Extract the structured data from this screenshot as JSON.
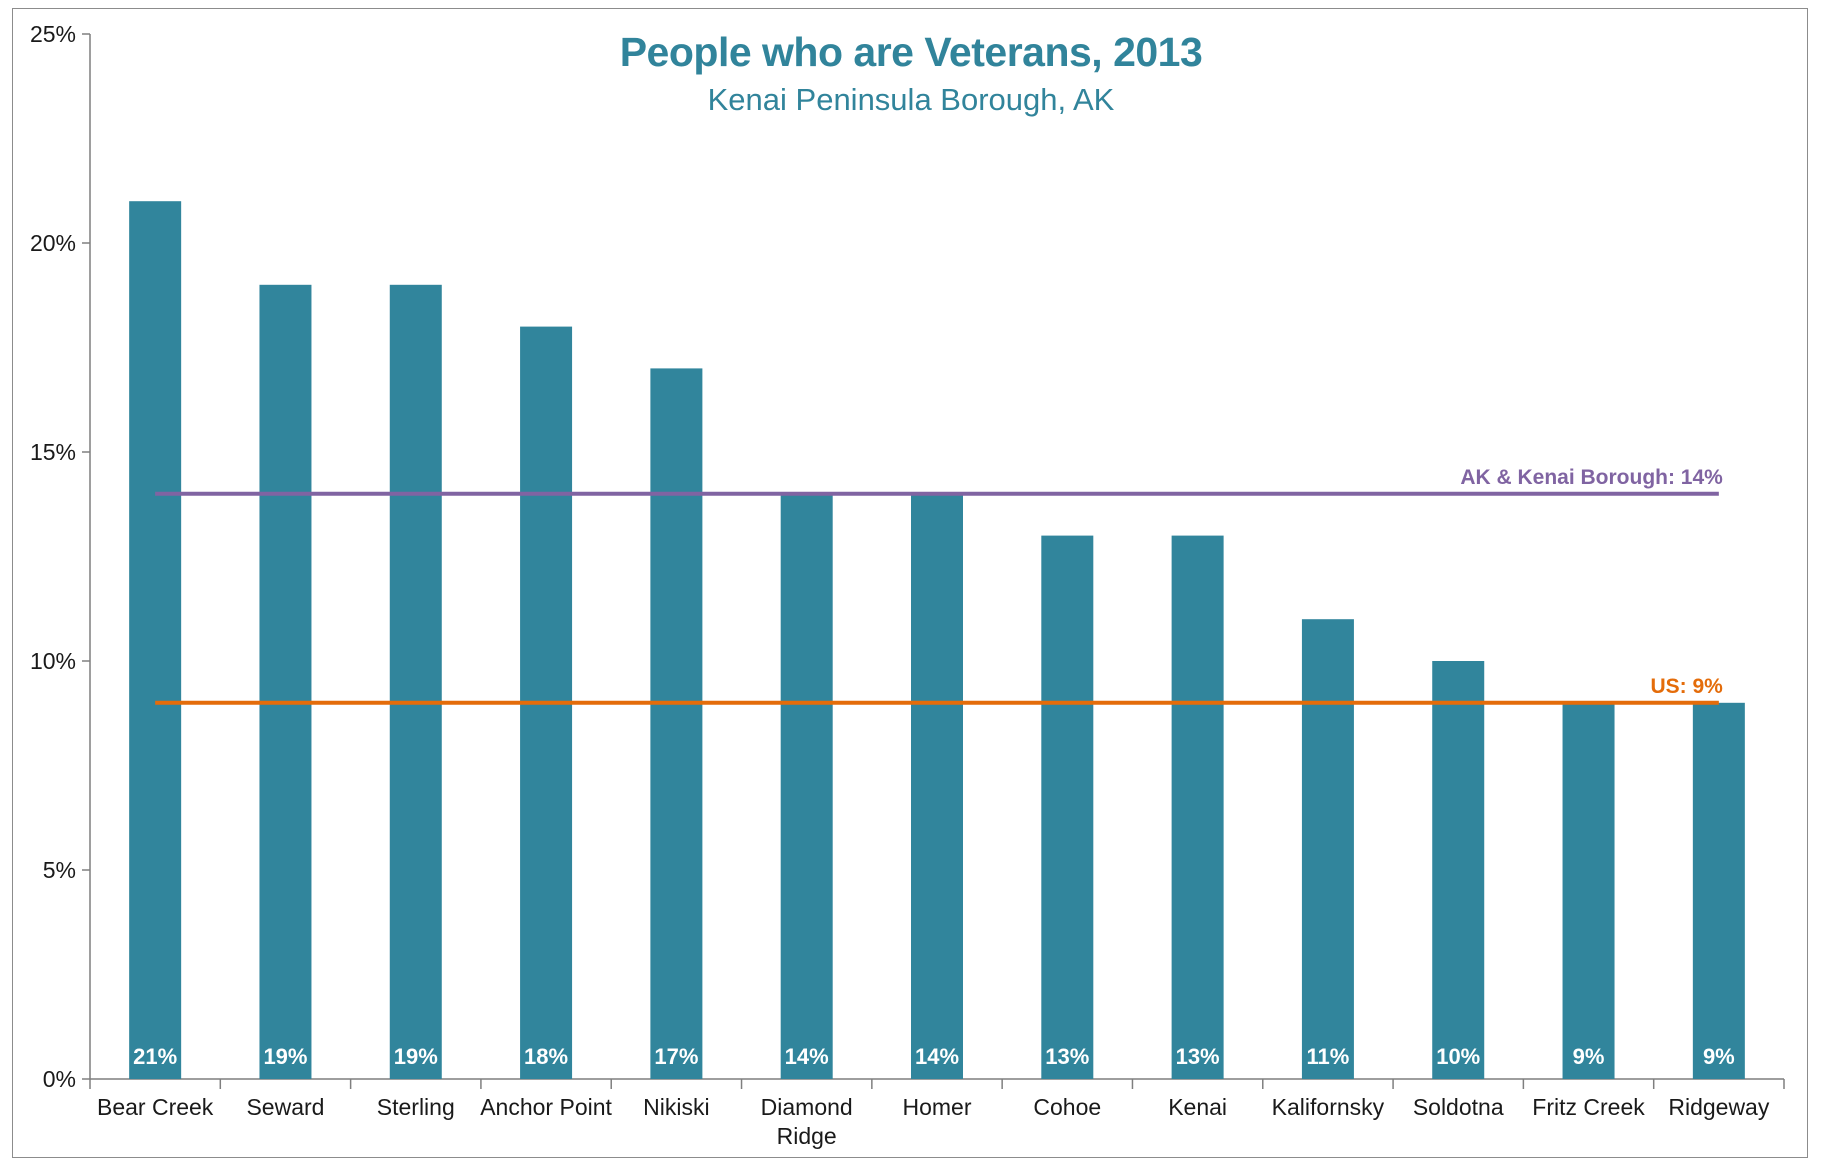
{
  "chart_data": {
    "type": "bar",
    "title": "People who are Veterans, 2013",
    "subtitle": "Kenai Peninsula Borough, AK",
    "categories": [
      [
        "Bear Creek"
      ],
      [
        "Seward"
      ],
      [
        "Sterling"
      ],
      [
        "Anchor Point"
      ],
      [
        "Nikiski"
      ],
      [
        "Diamond",
        "Ridge"
      ],
      [
        "Homer"
      ],
      [
        "Cohoe"
      ],
      [
        "Kenai"
      ],
      [
        "Kalifornsky"
      ],
      [
        "Soldotna"
      ],
      [
        "Fritz Creek"
      ],
      [
        "Ridgeway"
      ]
    ],
    "values": [
      21,
      19,
      19,
      18,
      17,
      14,
      14,
      13,
      13,
      11,
      10,
      9,
      9
    ],
    "data_labels": [
      "21%",
      "19%",
      "19%",
      "18%",
      "17%",
      "14%",
      "14%",
      "13%",
      "13%",
      "11%",
      "10%",
      "9%",
      "9%"
    ],
    "ylim": [
      0,
      25
    ],
    "yticks": [
      0,
      5,
      10,
      15,
      20,
      25
    ],
    "ytick_labels": [
      "0%",
      "5%",
      "10%",
      "15%",
      "20%",
      "25%"
    ],
    "xlabel": "",
    "ylabel": "",
    "grid": false,
    "reference_lines": [
      {
        "label": "AK & Kenai Borough: 14%",
        "value": 14,
        "color": "#8064a2"
      },
      {
        "label": "US: 9%",
        "value": 9,
        "color": "#e46c0a"
      }
    ],
    "colors": {
      "bar": "#31859c",
      "title": "#31849b",
      "axis": "#7f7f7f"
    }
  }
}
